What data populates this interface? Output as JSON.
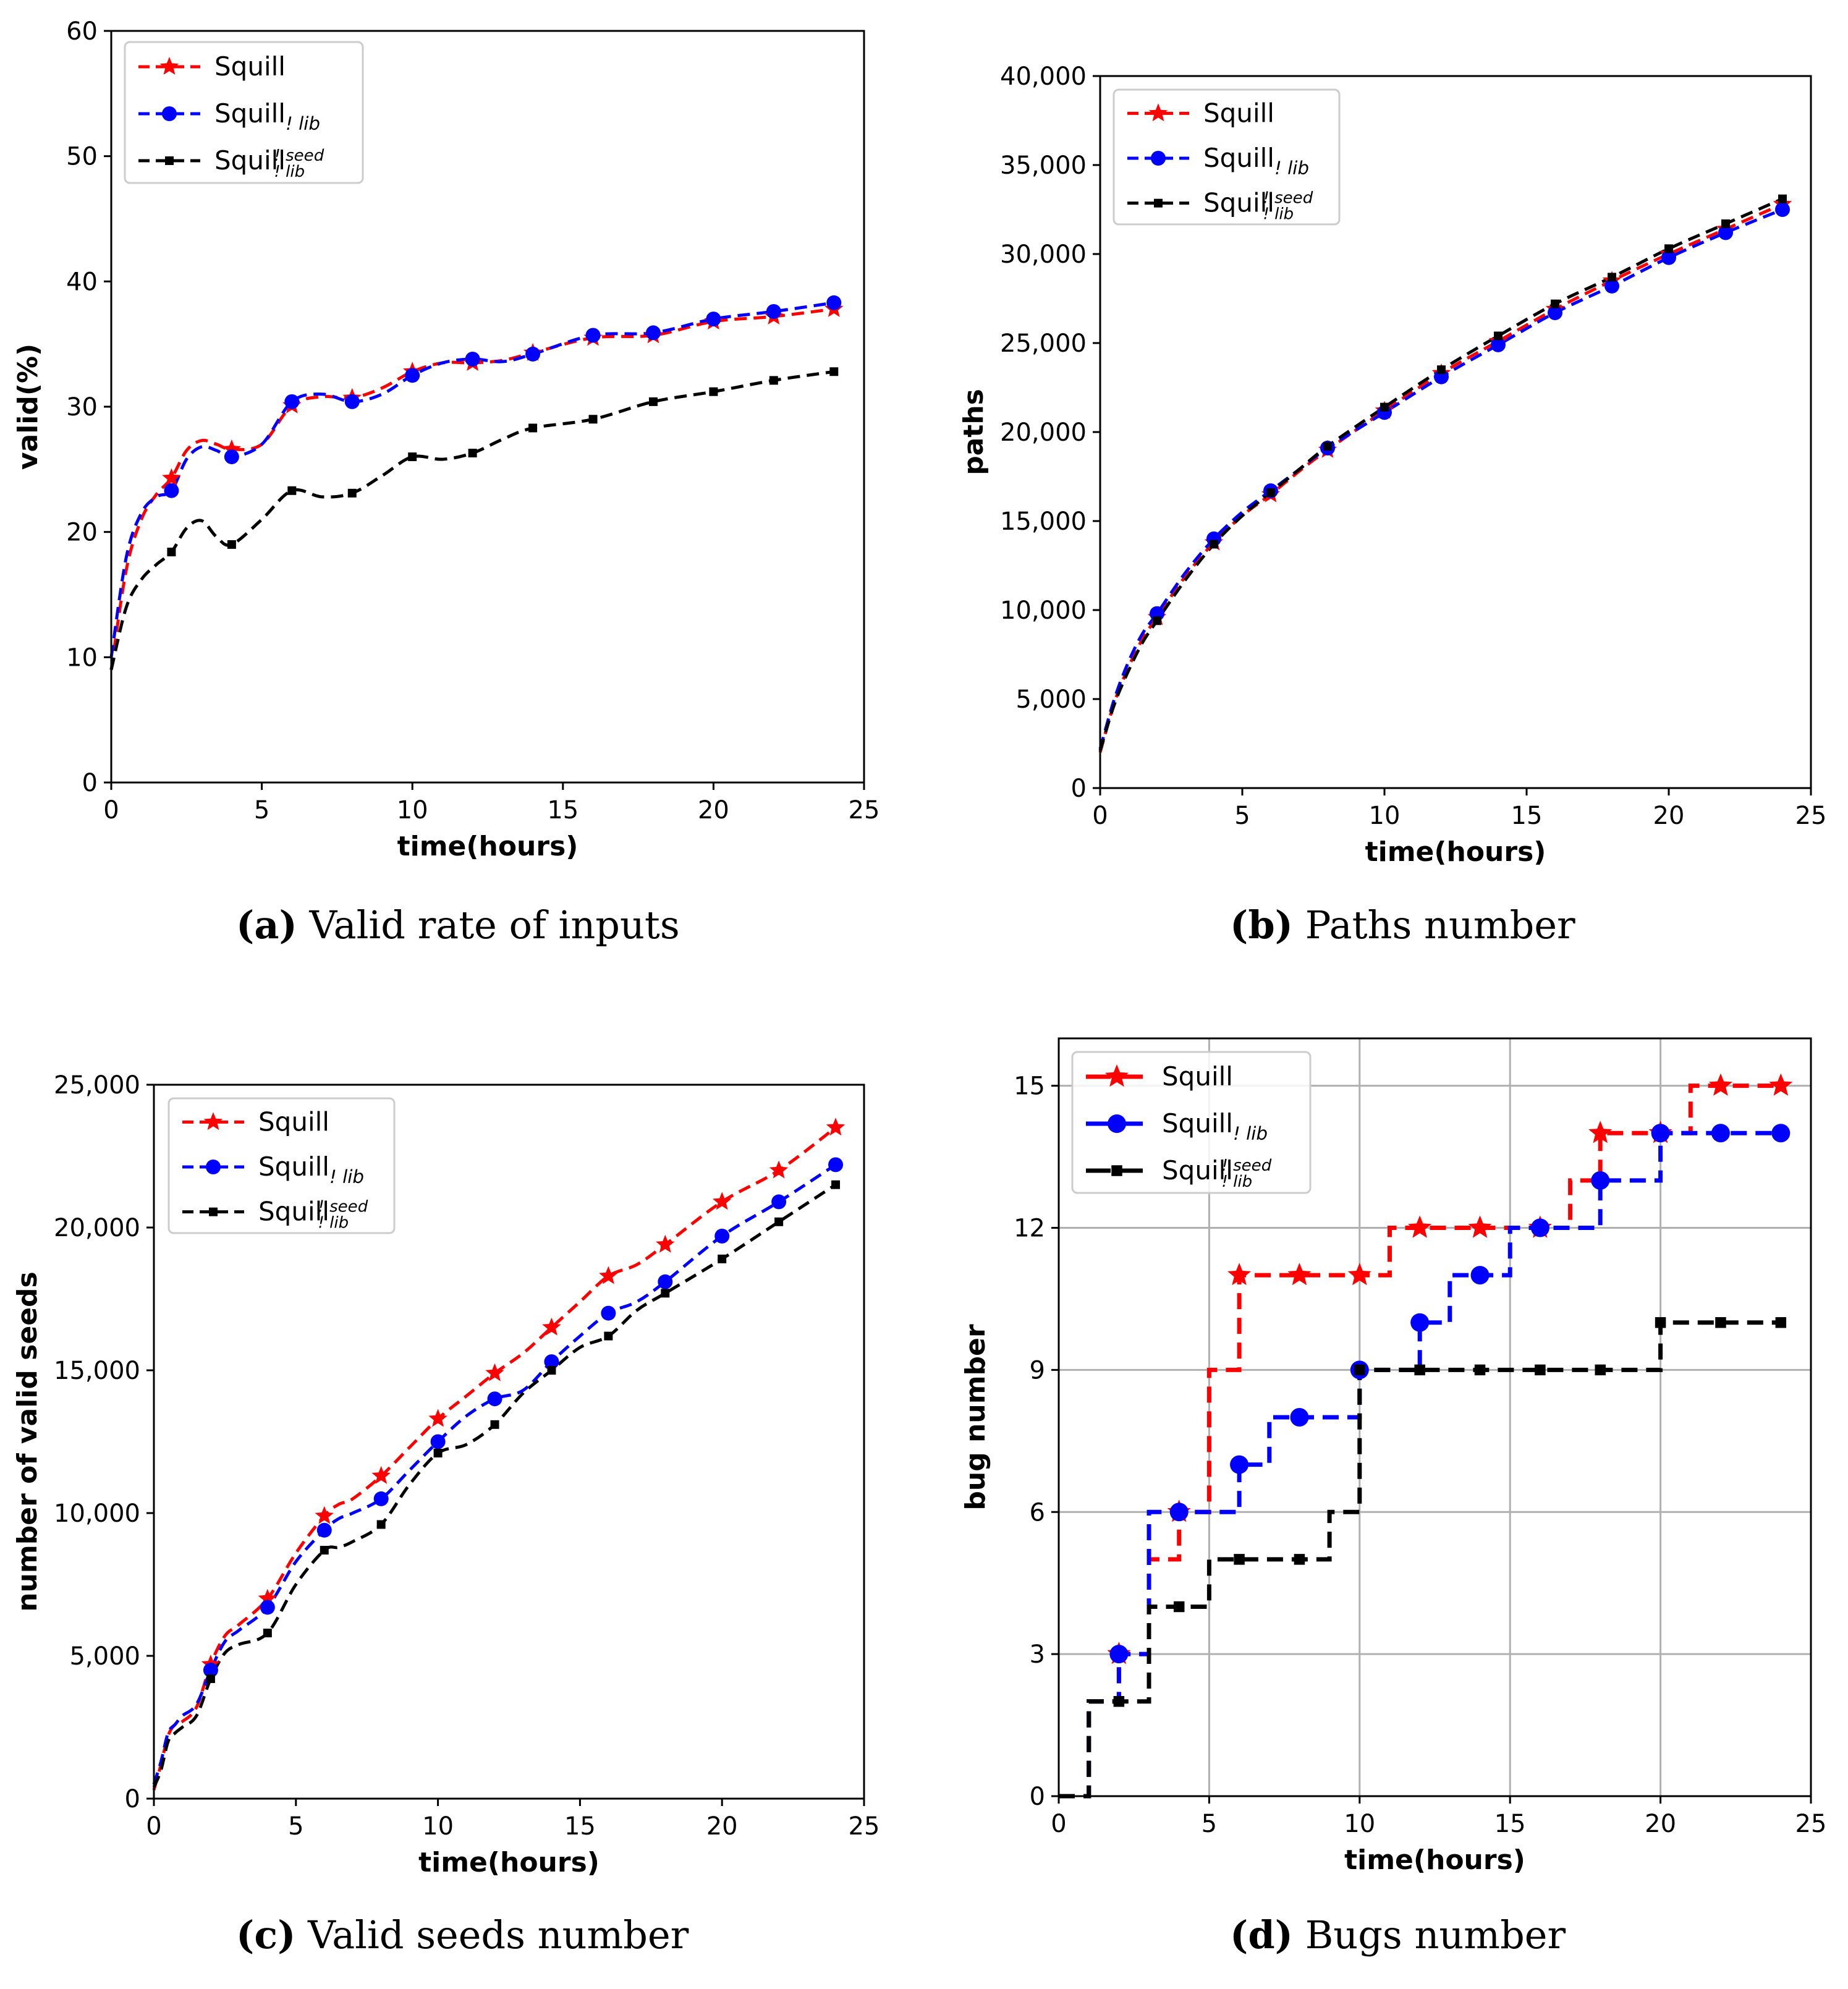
{
  "series_names": {
    "squill": "Squill",
    "nolib_base": "Squill",
    "nolib_sub": "! lib",
    "noseed_base": "Squill",
    "noseed_sup": "! seed",
    "noseed_sub": "! lib"
  },
  "series_colors": {
    "squill": "#ff0000",
    "nolib": "#0000ff",
    "noseed": "#000000"
  },
  "grid_color": "#b0b0b0",
  "charts": [
    {
      "id": "a",
      "caption_label": "(a)",
      "caption_text": " Valid rate of inputs",
      "chart_data": {
        "type": "line",
        "title": "Valid rate of inputs",
        "xlabel": "time(hours)",
        "ylabel": "valid(%)",
        "xlim": [
          0,
          25
        ],
        "ylim": [
          0,
          60
        ],
        "xticks": [
          0,
          5,
          10,
          15,
          20,
          25
        ],
        "yticks": [
          0,
          10,
          20,
          30,
          40,
          50,
          60
        ],
        "xtick_labels": [
          "0",
          "5",
          "10",
          "15",
          "20",
          "25"
        ],
        "ytick_labels": [
          "0",
          "10",
          "20",
          "30",
          "40",
          "50",
          "60"
        ],
        "grid": false,
        "legend_position": "upper left",
        "step": false,
        "series": [
          {
            "key": "squill",
            "marker": "star",
            "markers_at": [
              2,
              4,
              6,
              8,
              10,
              12,
              14,
              16,
              18,
              20,
              22,
              24
            ],
            "x": [
              0,
              0.5,
              1,
              1.5,
              2,
              2.5,
              3,
              3.5,
              4,
              5,
              6,
              7,
              8,
              9,
              10,
              11,
              12,
              13,
              14,
              16,
              18,
              20,
              22,
              24
            ],
            "y": [
              9,
              17,
              21,
              23,
              24.3,
              26.5,
              27.3,
              27,
              26.6,
              27,
              30.1,
              30.8,
              30.7,
              31.5,
              32.8,
              33.5,
              33.5,
              33.7,
              34.3,
              35.5,
              35.7,
              36.8,
              37.2,
              37.8
            ]
          },
          {
            "key": "nolib",
            "marker": "circle",
            "markers_at": [
              2,
              4,
              6,
              8,
              10,
              12,
              14,
              16,
              18,
              20,
              22,
              24
            ],
            "x": [
              0,
              0.5,
              1,
              1.5,
              2,
              2.5,
              3,
              3.5,
              4,
              5,
              6,
              7,
              8,
              9,
              10,
              11,
              12,
              13,
              14,
              16,
              18,
              20,
              22,
              24
            ],
            "y": [
              10,
              18,
              21.5,
              22.8,
              23.3,
              25.8,
              26.8,
              26.5,
              26,
              27,
              30.4,
              31,
              30.4,
              31,
              32.5,
              33.5,
              33.8,
              33.6,
              34.2,
              35.7,
              35.9,
              37,
              37.6,
              38.3
            ]
          },
          {
            "key": "noseed",
            "marker": "square",
            "markers_at": [
              2,
              4,
              6,
              8,
              10,
              12,
              14,
              16,
              18,
              20,
              22,
              24
            ],
            "x": [
              0,
              0.5,
              1,
              1.5,
              2,
              2.5,
              3,
              3.5,
              4,
              5,
              6,
              7,
              8,
              9,
              10,
              11,
              12,
              13,
              14,
              16,
              18,
              20,
              22,
              24
            ],
            "y": [
              9,
              14,
              16.2,
              17.4,
              18.4,
              20.3,
              20.9,
              19.6,
              19,
              21,
              23.3,
              22.8,
              23.1,
              24.5,
              26,
              25.8,
              26.3,
              27.4,
              28.3,
              29,
              30.4,
              31.2,
              32.1,
              32.8
            ]
          }
        ]
      }
    },
    {
      "id": "b",
      "caption_label": "(b)",
      "caption_text": " Paths number",
      "chart_data": {
        "type": "line",
        "title": "Paths number",
        "xlabel": "time(hours)",
        "ylabel": "paths",
        "xlim": [
          0,
          25
        ],
        "ylim": [
          0,
          40000
        ],
        "xticks": [
          0,
          5,
          10,
          15,
          20,
          25
        ],
        "yticks": [
          0,
          5000,
          10000,
          15000,
          20000,
          25000,
          30000,
          35000,
          40000
        ],
        "xtick_labels": [
          "0",
          "5",
          "10",
          "15",
          "20",
          "25"
        ],
        "ytick_labels": [
          "0",
          "5,000",
          "10,000",
          "15,000",
          "20,000",
          "25,000",
          "30,000",
          "35,000",
          "40,000"
        ],
        "grid": false,
        "legend_position": "upper left",
        "step": false,
        "series": [
          {
            "key": "squill",
            "marker": "star",
            "markers_at": [
              2,
              4,
              6,
              8,
              10,
              12,
              14,
              16,
              18,
              20,
              22,
              24
            ],
            "x": [
              0,
              0.5,
              1,
              1.5,
              2,
              3,
              4,
              5,
              6,
              7,
              8,
              10,
              12,
              14,
              16,
              18,
              20,
              22,
              24
            ],
            "y": [
              2000,
              4800,
              6800,
              8400,
              9600,
              11900,
              13800,
              15300,
              16500,
              17800,
              19000,
              21200,
              23300,
              25100,
              26900,
              28500,
              30000,
              31400,
              32800
            ]
          },
          {
            "key": "nolib",
            "marker": "circle",
            "markers_at": [
              2,
              4,
              6,
              8,
              10,
              12,
              14,
              16,
              18,
              20,
              22,
              24
            ],
            "x": [
              0,
              0.5,
              1,
              1.5,
              2,
              3,
              4,
              5,
              6,
              7,
              8,
              10,
              12,
              14,
              16,
              18,
              20,
              22,
              24
            ],
            "y": [
              2200,
              5000,
              7100,
              8700,
              9800,
              12100,
              14000,
              15500,
              16700,
              17900,
              19100,
              21100,
              23100,
              24900,
              26700,
              28200,
              29800,
              31200,
              32500
            ]
          },
          {
            "key": "noseed",
            "marker": "square",
            "markers_at": [
              2,
              4,
              6,
              8,
              10,
              12,
              14,
              16,
              18,
              20,
              22,
              24
            ],
            "x": [
              0,
              0.5,
              1,
              1.5,
              2,
              3,
              4,
              5,
              6,
              7,
              8,
              10,
              12,
              14,
              16,
              18,
              20,
              22,
              24
            ],
            "y": [
              2100,
              4700,
              6600,
              8200,
              9400,
              11700,
              13700,
              15300,
              16600,
              17900,
              19200,
              21400,
              23500,
              25400,
              27200,
              28700,
              30300,
              31700,
              33100
            ]
          }
        ]
      }
    },
    {
      "id": "c",
      "caption_label": "(c)",
      "caption_text": " Valid seeds number",
      "chart_data": {
        "type": "line",
        "title": "Valid seeds number",
        "xlabel": "time(hours)",
        "ylabel": "number of valid seeds",
        "xlim": [
          0,
          25
        ],
        "ylim": [
          0,
          25000
        ],
        "xticks": [
          0,
          5,
          10,
          15,
          20,
          25
        ],
        "yticks": [
          0,
          5000,
          10000,
          15000,
          20000,
          25000
        ],
        "xtick_labels": [
          "0",
          "5",
          "10",
          "15",
          "20",
          "25"
        ],
        "ytick_labels": [
          "0",
          "5,000",
          "10,000",
          "15,000",
          "20,000",
          "25,000"
        ],
        "grid": false,
        "legend_position": "upper left",
        "step": false,
        "series": [
          {
            "key": "squill",
            "marker": "star",
            "markers_at": [
              2,
              4,
              6,
              8,
              10,
              12,
              14,
              16,
              18,
              20,
              22,
              24
            ],
            "x": [
              0,
              0.25,
              0.5,
              0.75,
              1,
              1.5,
              2,
              2.5,
              3,
              4,
              5,
              6,
              6.5,
              7,
              8,
              9,
              10,
              11,
              12,
              13,
              14,
              15,
              16,
              17,
              18,
              20,
              22,
              24
            ],
            "y": [
              300,
              1200,
              2200,
              2600,
              2700,
              3200,
              4700,
              5700,
              6100,
              7000,
              8600,
              9900,
              10300,
              10500,
              11300,
              12300,
              13300,
              14100,
              14900,
              15600,
              16500,
              17400,
              18300,
              18700,
              19400,
              20900,
              22000,
              23500
            ]
          },
          {
            "key": "nolib",
            "marker": "circle",
            "markers_at": [
              2,
              4,
              6,
              8,
              10,
              12,
              14,
              16,
              18,
              20,
              22,
              24
            ],
            "x": [
              0,
              0.25,
              0.5,
              0.75,
              1,
              1.5,
              2,
              2.5,
              3,
              4,
              5,
              6,
              6.5,
              7,
              8,
              9,
              10,
              11,
              12,
              13,
              14,
              15,
              16,
              17,
              18,
              20,
              22,
              24
            ],
            "y": [
              500,
              1300,
              2300,
              2600,
              2900,
              3300,
              4500,
              5500,
              5900,
              6700,
              8300,
              9400,
              9800,
              10000,
              10500,
              11500,
              12500,
              13400,
              14000,
              14300,
              15300,
              16200,
              17000,
              17400,
              18100,
              19700,
              20900,
              22200
            ]
          },
          {
            "key": "noseed",
            "marker": "square",
            "markers_at": [
              2,
              4,
              6,
              8,
              10,
              12,
              14,
              16,
              18,
              20,
              22,
              24
            ],
            "x": [
              0,
              0.25,
              0.5,
              0.75,
              1,
              1.5,
              2,
              2.5,
              3,
              4,
              5,
              6,
              6.5,
              7,
              8,
              9,
              10,
              11,
              12,
              13,
              14,
              15,
              16,
              17,
              18,
              20,
              22,
              24
            ],
            "y": [
              400,
              1000,
              2000,
              2300,
              2500,
              2900,
              4200,
              5100,
              5400,
              5800,
              7500,
              8700,
              8800,
              9000,
              9600,
              11000,
              12100,
              12400,
              13100,
              14200,
              15000,
              15800,
              16200,
              17100,
              17700,
              18900,
              20200,
              21500
            ]
          }
        ]
      }
    },
    {
      "id": "d",
      "caption_label": "(d)",
      "caption_text": " Bugs number",
      "chart_data": {
        "type": "line",
        "title": "Bugs number",
        "xlabel": "time(hours)",
        "ylabel": "bug number",
        "xlim": [
          0,
          25
        ],
        "ylim": [
          0,
          16
        ],
        "xticks": [
          0,
          5,
          10,
          15,
          20,
          25
        ],
        "yticks": [
          0,
          3,
          6,
          9,
          12,
          15
        ],
        "xtick_labels": [
          "0",
          "5",
          "10",
          "15",
          "20",
          "25"
        ],
        "ytick_labels": [
          "0",
          "3",
          "6",
          "9",
          "12",
          "15"
        ],
        "grid": true,
        "legend_position": "upper left",
        "step": true,
        "series": [
          {
            "key": "squill",
            "marker": "star",
            "markers_at": [
              2,
              4,
              6,
              8,
              10,
              12,
              14,
              16,
              18,
              20,
              22,
              24
            ],
            "x": [
              0,
              1,
              2,
              3,
              4,
              5,
              6,
              7,
              8,
              9,
              10,
              11,
              12,
              13,
              14,
              15,
              16,
              17,
              18,
              19,
              20,
              21,
              22,
              23,
              24
            ],
            "y": [
              0,
              2,
              3,
              5,
              6,
              9,
              11,
              11,
              11,
              11,
              11,
              12,
              12,
              12,
              12,
              12,
              12,
              13,
              14,
              14,
              14,
              15,
              15,
              15,
              15
            ]
          },
          {
            "key": "nolib",
            "marker": "circle",
            "markers_at": [
              2,
              4,
              6,
              8,
              10,
              12,
              14,
              16,
              18,
              20,
              22,
              24
            ],
            "x": [
              0,
              1,
              2,
              3,
              4,
              5,
              6,
              7,
              8,
              9,
              10,
              11,
              12,
              13,
              14,
              15,
              16,
              17,
              18,
              19,
              20,
              21,
              22,
              23,
              24
            ],
            "y": [
              0,
              2,
              3,
              6,
              6,
              6,
              7,
              8,
              8,
              8,
              9,
              9,
              10,
              11,
              11,
              12,
              12,
              12,
              13,
              13,
              14,
              14,
              14,
              14,
              14
            ]
          },
          {
            "key": "noseed",
            "marker": "square",
            "markers_at": [
              2,
              4,
              6,
              8,
              10,
              12,
              14,
              16,
              18,
              20,
              22,
              24
            ],
            "x": [
              0,
              1,
              2,
              3,
              4,
              5,
              6,
              7,
              8,
              9,
              10,
              11,
              12,
              13,
              14,
              15,
              16,
              17,
              18,
              19,
              20,
              21,
              22,
              23,
              24
            ],
            "y": [
              0,
              2,
              2,
              4,
              4,
              5,
              5,
              5,
              5,
              6,
              9,
              9,
              9,
              9,
              9,
              9,
              9,
              9,
              9,
              9,
              10,
              10,
              10,
              10,
              10
            ]
          }
        ]
      }
    }
  ]
}
